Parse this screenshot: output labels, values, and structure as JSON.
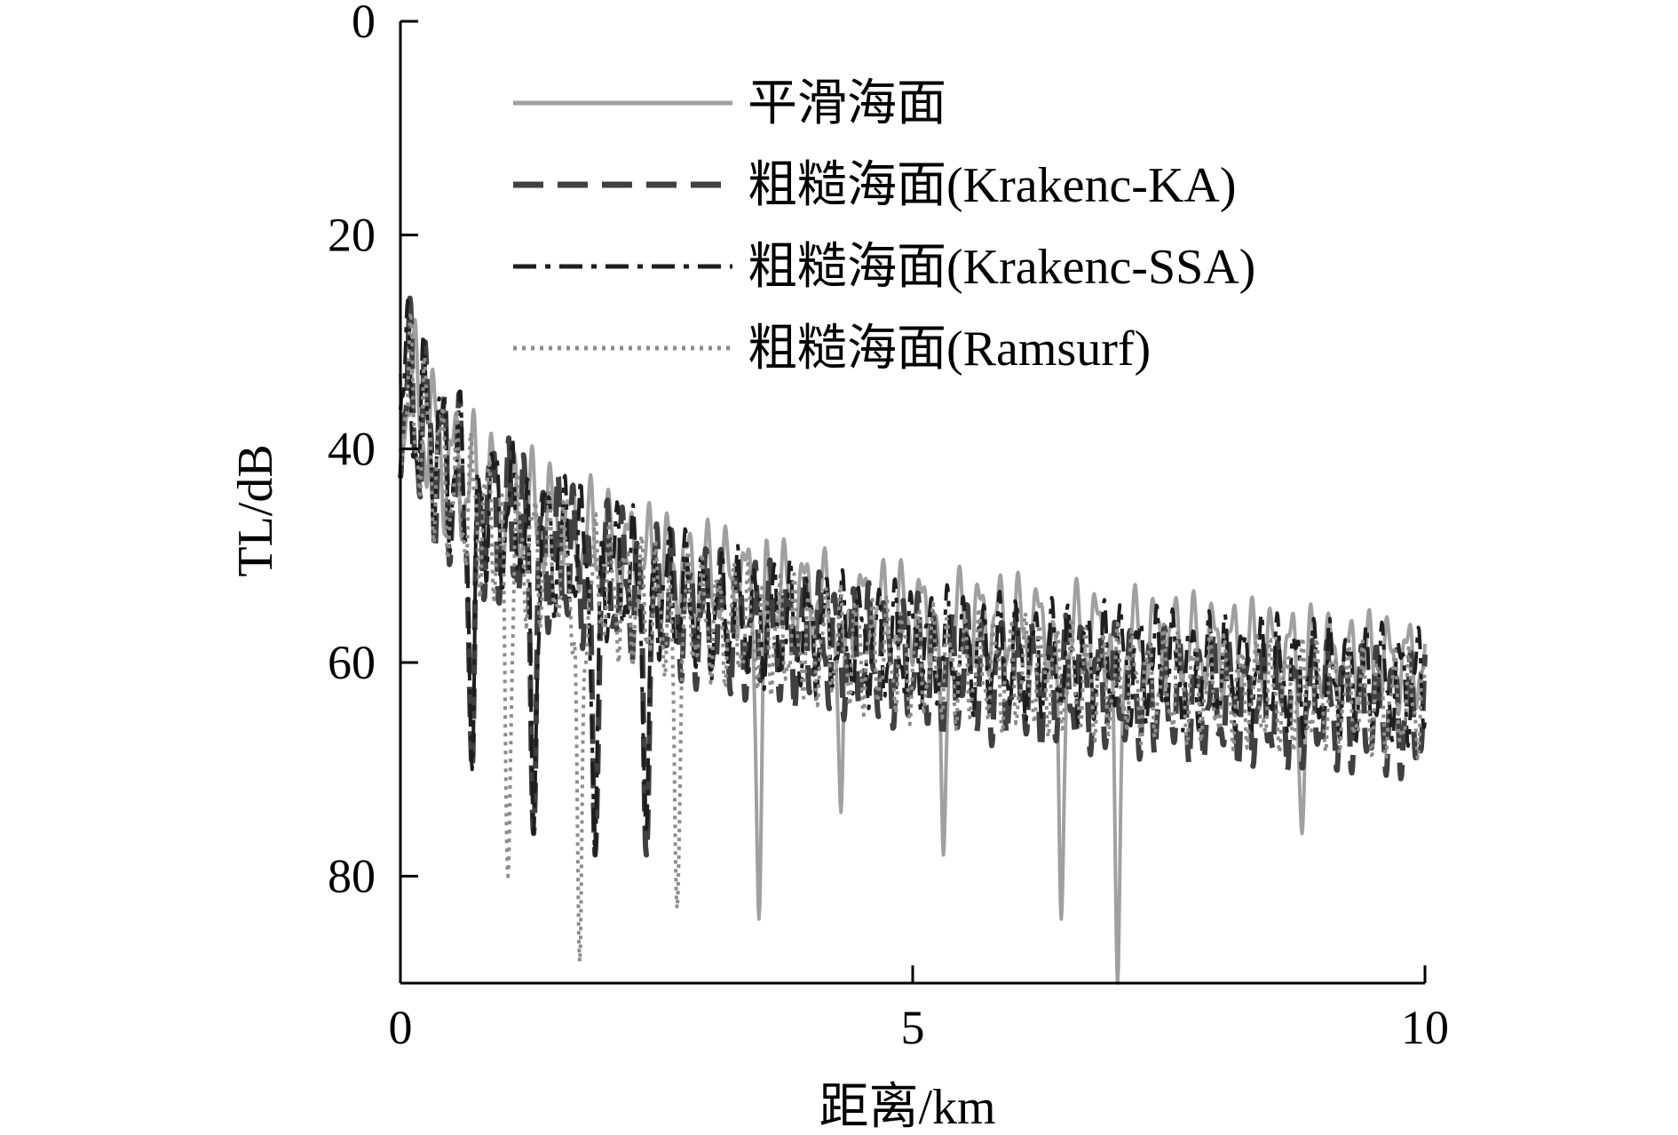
{
  "chart_data": {
    "type": "line",
    "title": "",
    "xlabel": "距离/km",
    "ylabel": "TL/dB",
    "xlim": [
      0,
      10
    ],
    "ylim": [
      0,
      90
    ],
    "y_inverted": true,
    "x_ticks": [
      "0",
      "5",
      "10"
    ],
    "y_ticks": [
      "0",
      "20",
      "40",
      "60",
      "80"
    ],
    "grid": false,
    "legend_position": "top-right",
    "series": [
      {
        "name": "平滑海面",
        "style": "solid",
        "color": "#a0a0a0",
        "x": [
          0.0,
          0.5,
          1.0,
          1.5,
          2.0,
          2.5,
          3.0,
          3.5,
          4.0,
          4.5,
          5.0,
          5.5,
          6.0,
          6.5,
          7.0,
          7.5,
          8.0,
          8.5,
          9.0,
          9.5,
          10.0
        ],
        "values": [
          33,
          42,
          45,
          47,
          49,
          51,
          52,
          53,
          54,
          55,
          55.5,
          56,
          56.5,
          57,
          57.5,
          58,
          58.5,
          59,
          59.5,
          60,
          60
        ],
        "dips": [
          [
            3.5,
            84
          ],
          [
            4.3,
            74
          ],
          [
            5.3,
            78
          ],
          [
            6.45,
            84
          ],
          [
            7.0,
            90
          ],
          [
            8.8,
            76
          ]
        ]
      },
      {
        "name": "粗糙海面(Krakenc-KA)",
        "style": "dashed",
        "color": "#404040",
        "x": [
          0.0,
          0.5,
          1.0,
          1.5,
          2.0,
          2.5,
          3.0,
          3.5,
          4.0,
          4.5,
          5.0,
          5.5,
          6.0,
          6.5,
          7.0,
          7.5,
          8.0,
          8.5,
          9.0,
          9.5,
          10.0
        ],
        "values": [
          34,
          43,
          47,
          50,
          52,
          54,
          56,
          57,
          58,
          59,
          60,
          61,
          61.5,
          62,
          62.5,
          63,
          63.5,
          64,
          64,
          64.5,
          65
        ],
        "dips": [
          [
            0.7,
            70
          ],
          [
            1.3,
            76
          ],
          [
            1.9,
            78
          ],
          [
            2.4,
            78
          ]
        ]
      },
      {
        "name": "粗糙海面(Krakenc-SSA)",
        "style": "dashdot",
        "color": "#1e1e1e",
        "x": [
          0.0,
          0.5,
          1.0,
          1.5,
          2.0,
          2.5,
          3.0,
          3.5,
          4.0,
          4.5,
          5.0,
          5.5,
          6.0,
          6.5,
          7.0,
          7.5,
          8.0,
          8.5,
          9.0,
          9.5,
          10.0
        ],
        "values": [
          34,
          42,
          46,
          49,
          51,
          53,
          55,
          56,
          57,
          58,
          58.5,
          59,
          59.5,
          60,
          60,
          60.5,
          61,
          61,
          61.5,
          62,
          62
        ],
        "dips": [
          [
            0.7,
            70
          ],
          [
            1.3,
            76
          ],
          [
            1.9,
            78
          ],
          [
            2.4,
            76
          ]
        ]
      },
      {
        "name": "粗糙海面(Ramsurf)",
        "style": "dotted",
        "color": "#8c8c8c",
        "x": [
          0.0,
          0.5,
          1.0,
          1.5,
          2.0,
          2.5,
          3.0,
          3.5,
          4.0,
          4.5,
          5.0,
          5.5,
          6.0,
          6.5,
          7.0,
          7.5,
          8.0,
          8.5,
          9.0,
          9.5,
          10.0
        ],
        "values": [
          34,
          44,
          48,
          51,
          53,
          55,
          56,
          57,
          58,
          59,
          60,
          60.5,
          61,
          61.5,
          62,
          62,
          62.5,
          63,
          63,
          63.5,
          64
        ],
        "dips": [
          [
            1.05,
            80
          ],
          [
            1.75,
            88
          ],
          [
            2.7,
            83
          ]
        ]
      }
    ]
  }
}
